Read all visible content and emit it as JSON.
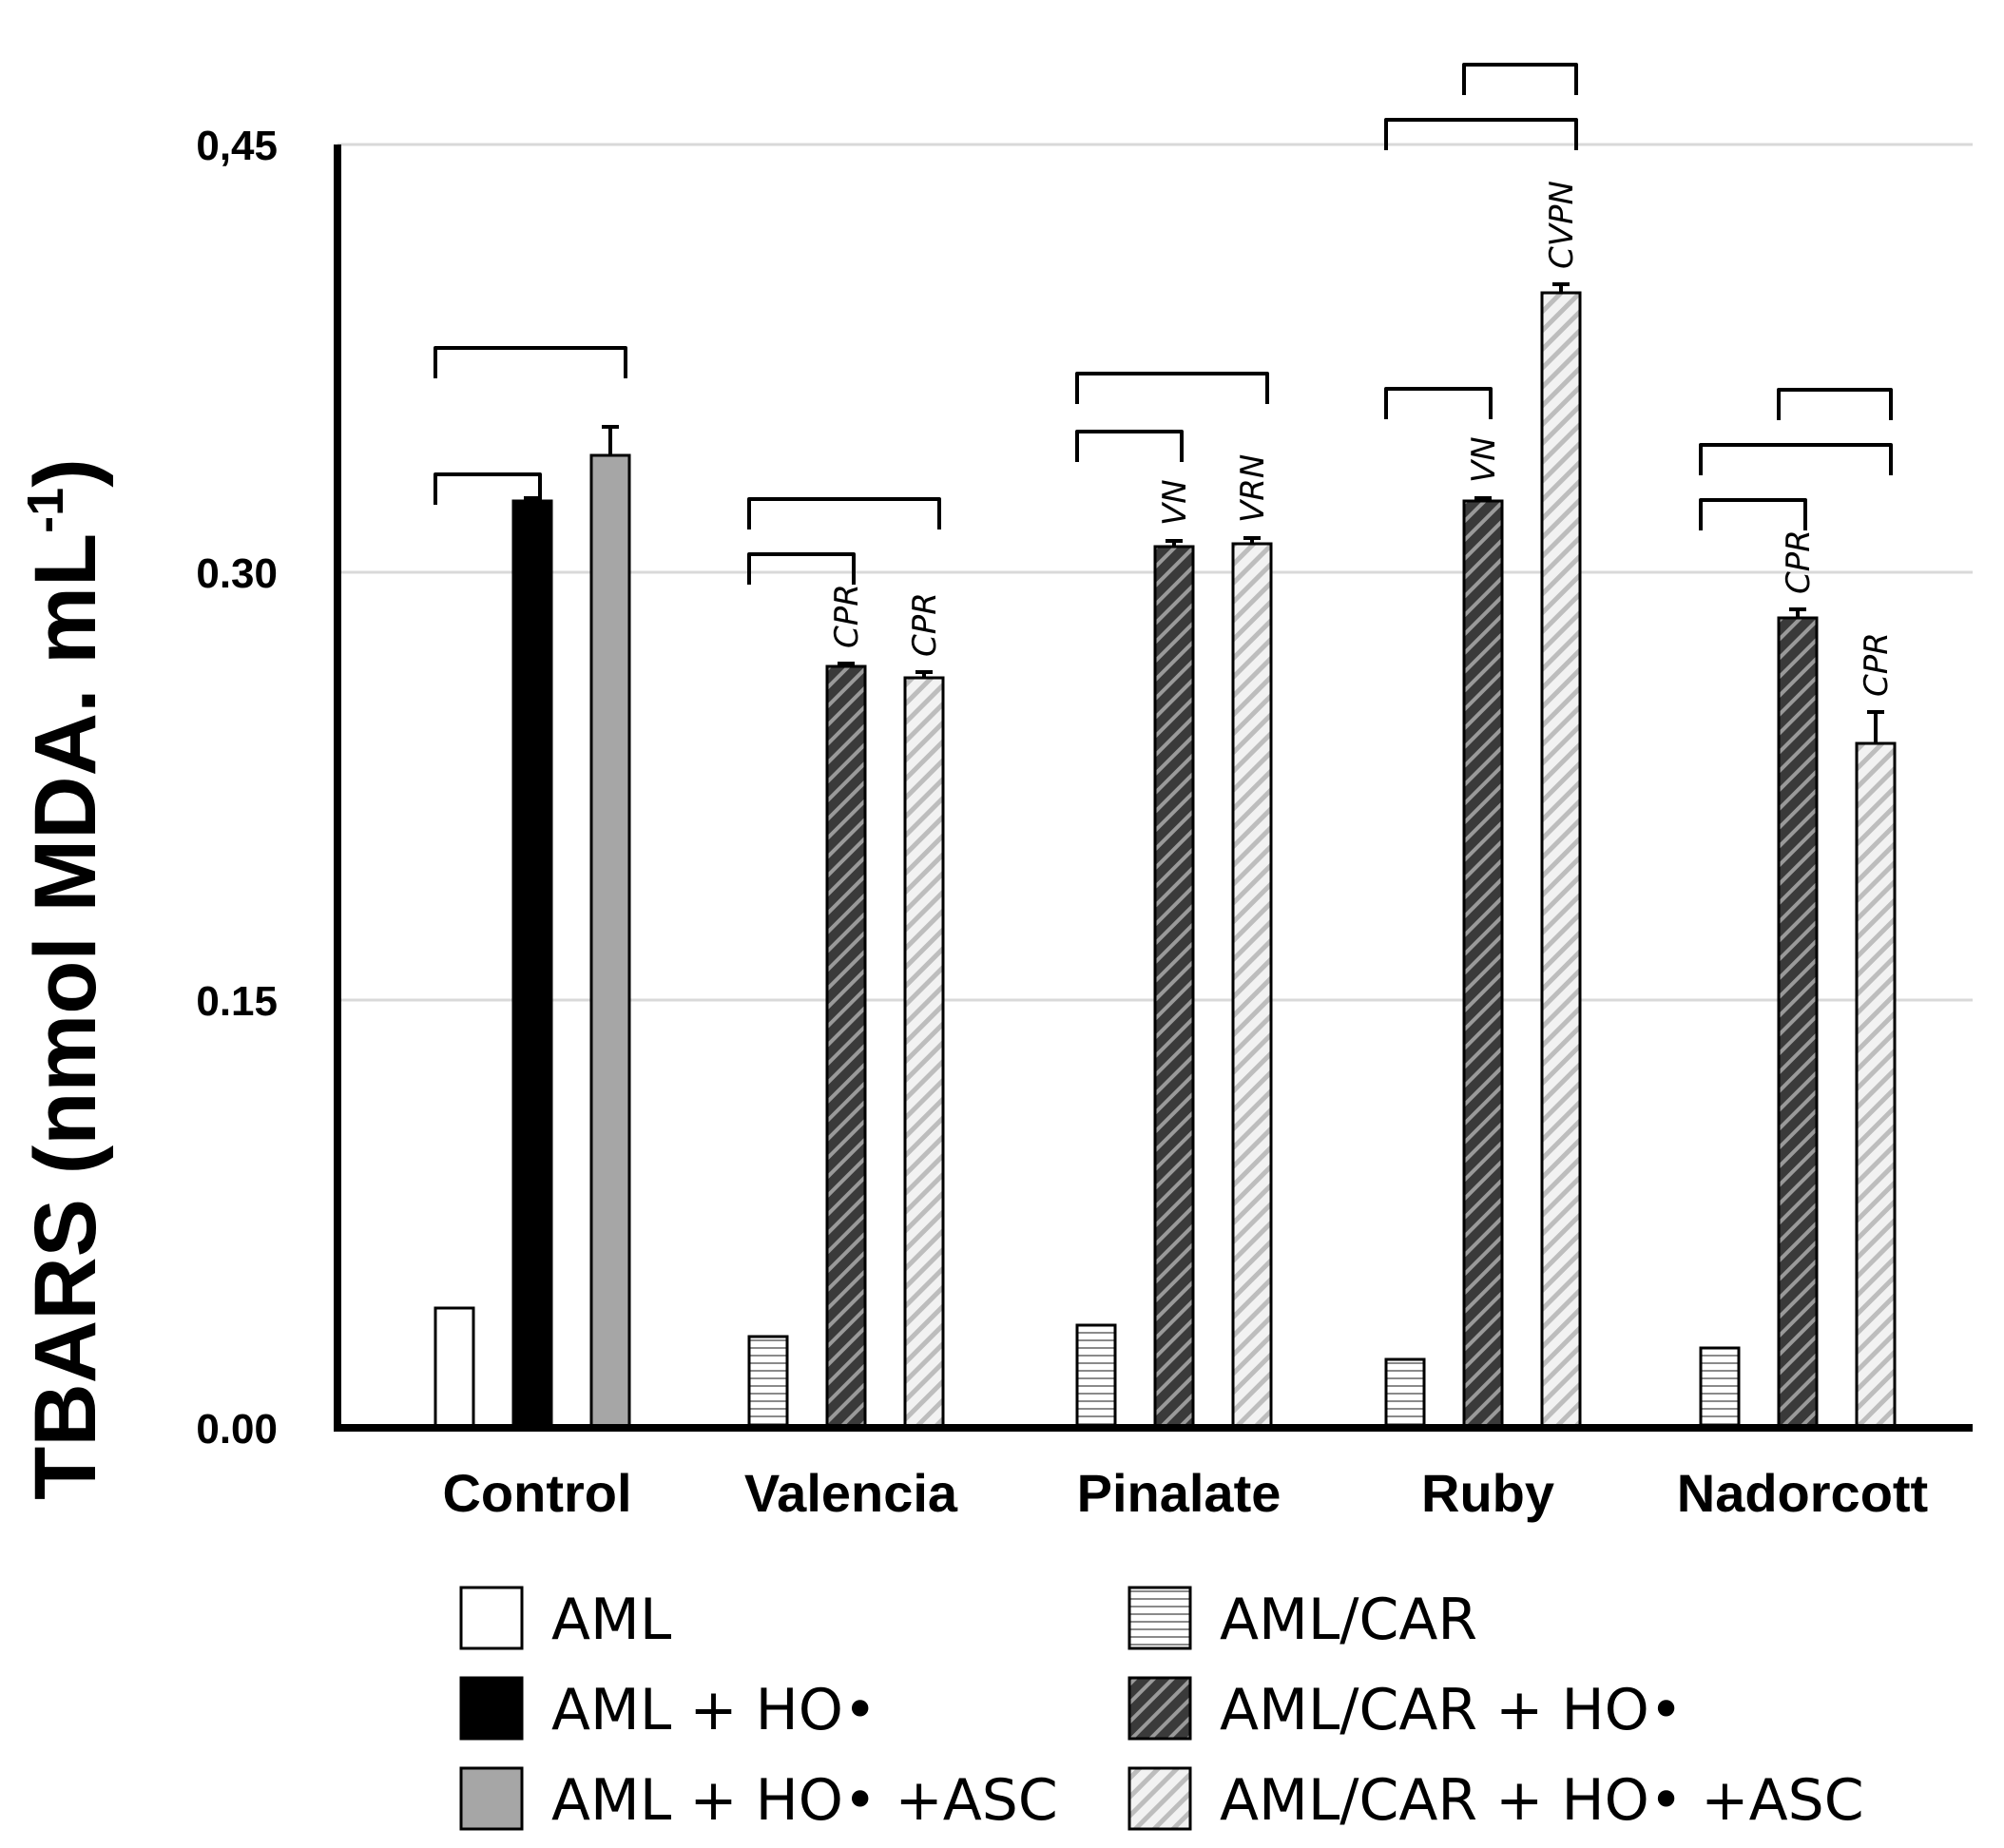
{
  "chart_data": {
    "type": "bar",
    "ylabel": "TBARS (nmol MDA. mL",
    "ylabel_sup": "-1",
    "ylabel_close": ")",
    "ylim": [
      0,
      0.45
    ],
    "yticks": [
      {
        "value": 0.0,
        "label": "0.00"
      },
      {
        "value": 0.15,
        "label": "0.15"
      },
      {
        "value": 0.3,
        "label": "0.30"
      },
      {
        "value": 0.45,
        "label": "0,45"
      }
    ],
    "grid": true,
    "categories": [
      "Control",
      "Valencia",
      "Pinalate",
      "Ruby",
      "Nadorcott"
    ],
    "series": [
      {
        "name": "AML",
        "style": "white",
        "slot": 0,
        "values": [
          0.042,
          null,
          null,
          null,
          null
        ],
        "errors": [
          0,
          null,
          null,
          null,
          null
        ]
      },
      {
        "name": "AML + HO•",
        "style": "black",
        "slot": 1,
        "values": [
          0.325,
          null,
          null,
          null,
          null
        ],
        "errors": [
          0.001,
          null,
          null,
          null,
          null
        ]
      },
      {
        "name": "AML + HO• +ASC",
        "style": "gray",
        "slot": 2,
        "values": [
          0.341,
          null,
          null,
          null,
          null
        ],
        "errors": [
          0.01,
          null,
          null,
          null,
          null
        ]
      },
      {
        "name": "AML/CAR",
        "style": "hlines",
        "slot": 0,
        "values": [
          null,
          0.032,
          0.036,
          0.024,
          0.028
        ],
        "errors": [
          null,
          0,
          0,
          0,
          0
        ]
      },
      {
        "name": "AML/CAR + HO•",
        "style": "darkhatch",
        "slot": 1,
        "values": [
          null,
          0.267,
          0.309,
          0.325,
          0.284
        ],
        "errors": [
          null,
          0.001,
          0.002,
          0.001,
          0.003
        ]
      },
      {
        "name": "AML/CAR + HO• +ASC",
        "style": "lighthatch",
        "slot": 2,
        "values": [
          null,
          0.263,
          0.31,
          0.398,
          0.24
        ],
        "errors": [
          null,
          0.002,
          0.002,
          0.003,
          0.011
        ]
      }
    ],
    "significance_labels": [
      {
        "category": "Valencia",
        "slot": 1,
        "text": "CPR"
      },
      {
        "category": "Valencia",
        "slot": 2,
        "text": "CPR"
      },
      {
        "category": "Pinalate",
        "slot": 1,
        "text": "VN"
      },
      {
        "category": "Pinalate",
        "slot": 2,
        "text": "VRN"
      },
      {
        "category": "Ruby",
        "slot": 1,
        "text": "VN"
      },
      {
        "category": "Ruby",
        "slot": 2,
        "text": "CVPN"
      },
      {
        "category": "Nadorcott",
        "slot": 1,
        "text": "CPR"
      },
      {
        "category": "Nadorcott",
        "slot": 2,
        "text": "CPR"
      }
    ],
    "brackets": [
      {
        "category": "Control",
        "from": 0,
        "to": 1
      },
      {
        "category": "Control",
        "from": 0,
        "to": 2
      },
      {
        "category": "Valencia",
        "from": 0,
        "to": 1
      },
      {
        "category": "Valencia",
        "from": 0,
        "to": 2
      },
      {
        "category": "Pinalate",
        "from": 0,
        "to": 1
      },
      {
        "category": "Pinalate",
        "from": 0,
        "to": 2
      },
      {
        "category": "Ruby",
        "from": 0,
        "to": 1
      },
      {
        "category": "Ruby",
        "from": 0,
        "to": 2
      },
      {
        "category": "Ruby",
        "from": 1,
        "to": 2
      },
      {
        "category": "Nadorcott",
        "from": 0,
        "to": 1
      },
      {
        "category": "Nadorcott",
        "from": 0,
        "to": 2
      },
      {
        "category": "Nadorcott",
        "from": 1,
        "to": 2
      }
    ],
    "legend": [
      {
        "label": "AML",
        "style": "white"
      },
      {
        "label": "AML + HO•",
        "style": "black"
      },
      {
        "label": "AML + HO• +ASC",
        "style": "gray"
      },
      {
        "label": "AML/CAR",
        "style": "hlines"
      },
      {
        "label": "AML/CAR + HO•",
        "style": "darkhatch"
      },
      {
        "label": "AML/CAR + HO• +ASC",
        "style": "lighthatch"
      }
    ],
    "legend_position": "bottom"
  }
}
